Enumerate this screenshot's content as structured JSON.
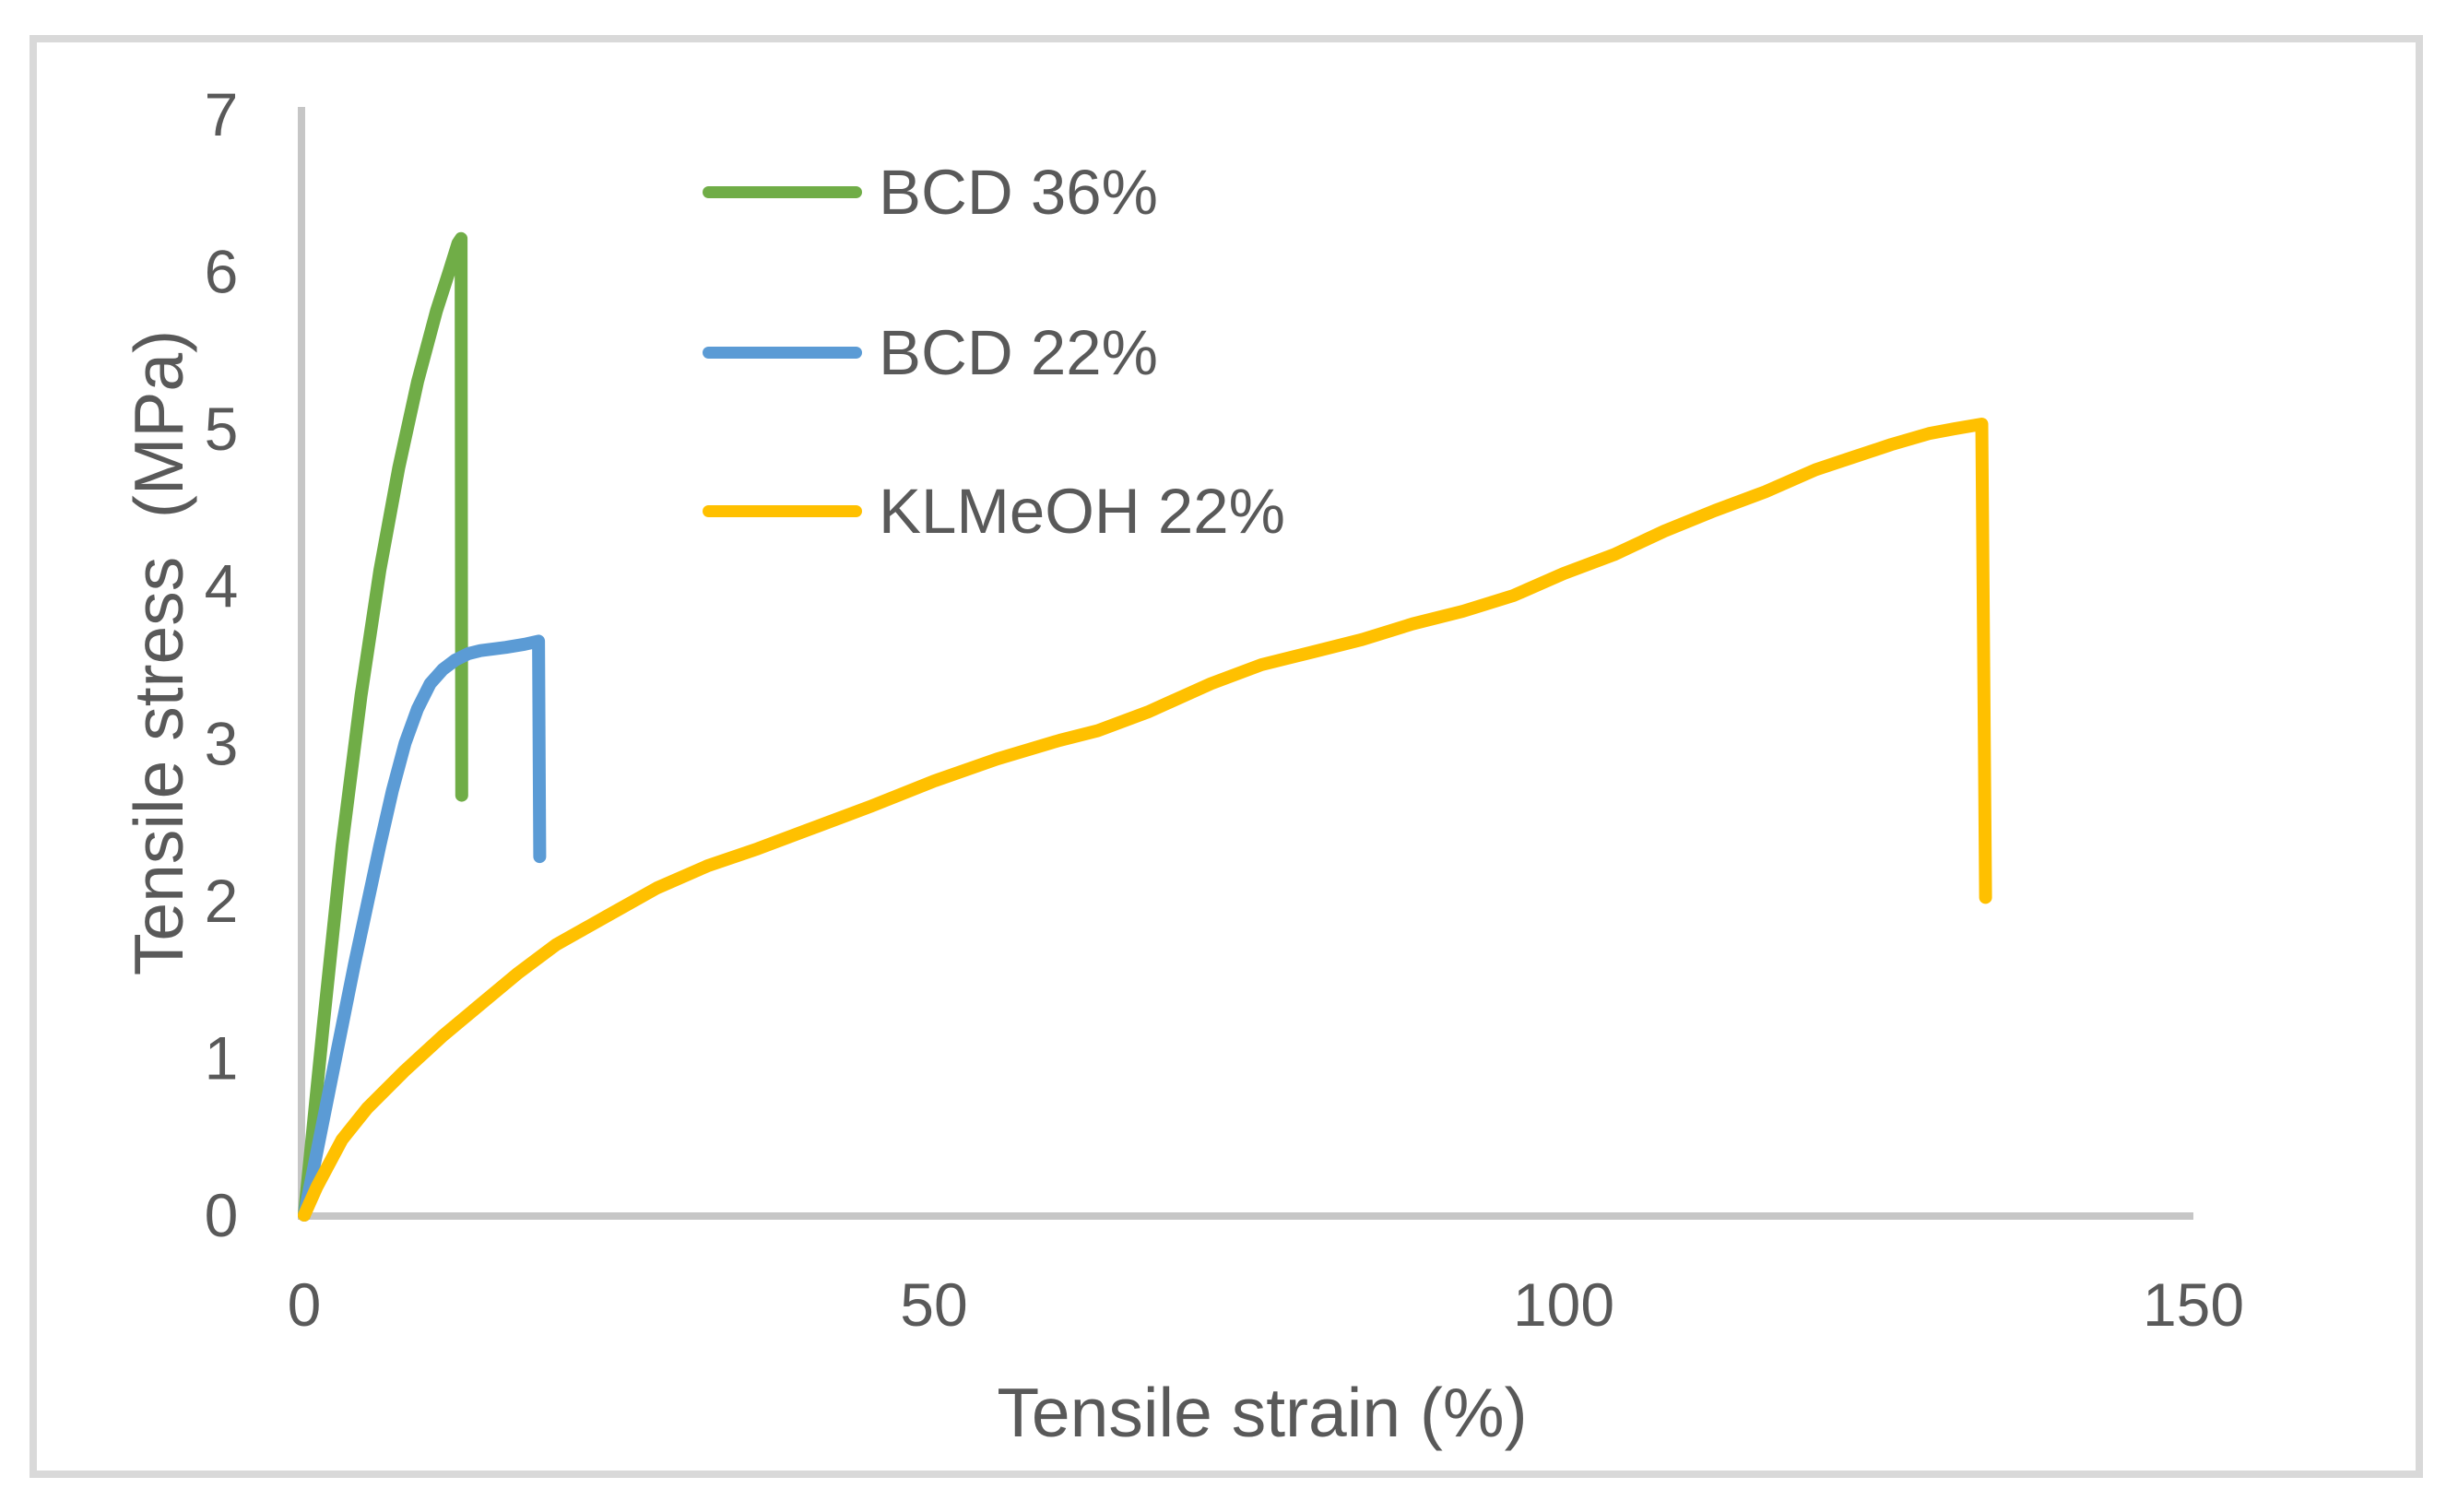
{
  "colors": {
    "text": "#595959",
    "axis_line": "#C6C6C6",
    "chart_border": "#D9D9D9",
    "series_green": "#70AD47",
    "series_blue": "#5B9BD5",
    "series_yellow": "#FFC000"
  },
  "legend": {
    "position": "inside-top-left",
    "entries": [
      "BCD 36%",
      "BCD 22%",
      "KLMeOH 22%"
    ]
  },
  "chart_data": {
    "type": "line",
    "title": "",
    "xlabel": "Tensile strain (%)",
    "ylabel": "Tensile stress  (MPa)",
    "xlim": [
      0,
      150
    ],
    "ylim": [
      0,
      7
    ],
    "x_ticks": [
      0,
      50,
      100,
      150
    ],
    "y_ticks": [
      0,
      1,
      2,
      3,
      4,
      5,
      6,
      7
    ],
    "grid": false,
    "legend_position": "inside-top-left",
    "series": [
      {
        "name": "BCD 36%",
        "color": "#70AD47",
        "x": [
          0,
          1.5,
          3,
          4.5,
          6,
          7.5,
          9,
          10.5,
          11.5,
          12.2,
          12.45,
          12.5
        ],
        "y": [
          0,
          1.2,
          2.35,
          3.3,
          4.1,
          4.75,
          5.3,
          5.75,
          6.0,
          6.18,
          6.21,
          2.67
        ]
      },
      {
        "name": "BCD 22%",
        "color": "#5B9BD5",
        "x": [
          0,
          2,
          4,
          6,
          7,
          8,
          9,
          10,
          11,
          12,
          13,
          14,
          16,
          17.5,
          18.6,
          18.7
        ],
        "y": [
          0,
          0.8,
          1.6,
          2.35,
          2.7,
          3.0,
          3.22,
          3.38,
          3.47,
          3.53,
          3.57,
          3.59,
          3.61,
          3.63,
          3.65,
          2.28
        ]
      },
      {
        "name": "KLMeOH 22%",
        "color": "#FFC000",
        "x": [
          0,
          1,
          3,
          5,
          8,
          11,
          14,
          17,
          20,
          24,
          28,
          32,
          36,
          40,
          45,
          50,
          55,
          60,
          63,
          67,
          72,
          76,
          80,
          84,
          88,
          92,
          96,
          100,
          104,
          108,
          112,
          116,
          120,
          123,
          126,
          129,
          131,
          133.2,
          133.5
        ],
        "y": [
          0,
          0.18,
          0.48,
          0.68,
          0.92,
          1.14,
          1.34,
          1.54,
          1.72,
          1.9,
          2.08,
          2.22,
          2.33,
          2.45,
          2.6,
          2.76,
          2.9,
          3.02,
          3.08,
          3.2,
          3.38,
          3.5,
          3.58,
          3.66,
          3.76,
          3.84,
          3.94,
          4.08,
          4.2,
          4.35,
          4.48,
          4.6,
          4.74,
          4.82,
          4.9,
          4.97,
          5.0,
          5.03,
          2.02
        ]
      }
    ]
  }
}
